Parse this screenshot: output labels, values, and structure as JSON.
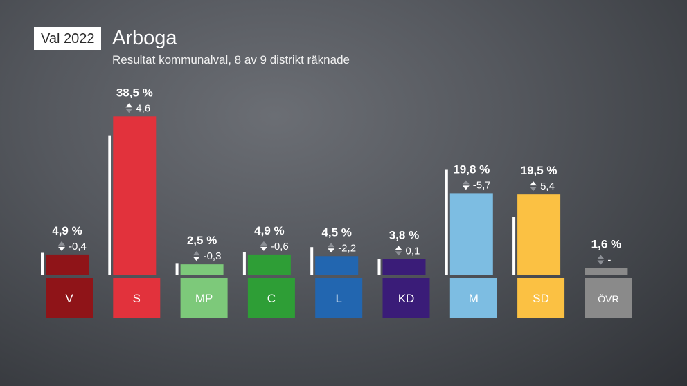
{
  "header": {
    "badge": "Val 2022",
    "title": "Arboga",
    "subtitle": "Resultat kommunalval, 8 av 9 distrikt räknade"
  },
  "chart_data": {
    "type": "bar",
    "ylim": [
      0,
      40
    ],
    "grid": false,
    "categories": [
      "V",
      "S",
      "MP",
      "C",
      "L",
      "KD",
      "M",
      "SD",
      "ÖVR"
    ],
    "colors": [
      "#8f1418",
      "#e2323c",
      "#7dc97a",
      "#2e9e36",
      "#2266b0",
      "#3a1c78",
      "#7dbde2",
      "#fbc143",
      "#8a8a8a"
    ],
    "values": [
      4.9,
      38.5,
      2.5,
      4.9,
      4.5,
      3.8,
      19.8,
      19.5,
      1.6
    ],
    "value_labels": [
      "4,9 %",
      "38,5 %",
      "2,5 %",
      "4,9 %",
      "4,5 %",
      "3,8 %",
      "19,8 %",
      "19,5 %",
      "1,6 %"
    ],
    "previous": [
      5.3,
      33.9,
      2.8,
      5.5,
      6.7,
      3.7,
      25.5,
      14.1,
      null
    ],
    "change_labels": [
      "-0,4",
      "4,6",
      "-0,3",
      "-0,6",
      "-2,2",
      "0,1",
      "-5,7",
      "5,4",
      "-"
    ]
  }
}
